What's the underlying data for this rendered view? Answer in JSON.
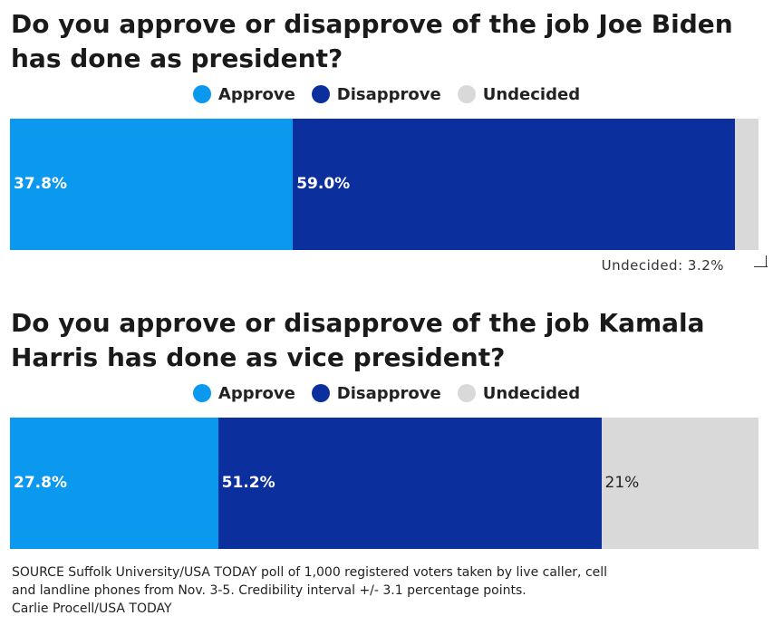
{
  "colors": {
    "approve": "#0b98ef",
    "disapprove": "#0c2f9e",
    "undecided": "#d9d9d9"
  },
  "chart_data": [
    {
      "type": "bar",
      "orientation": "horizontal-stacked",
      "title": "Do you approve or disapprove of the job Joe Biden has done as president?",
      "legend": [
        "Approve",
        "Disapprove",
        "Undecided"
      ],
      "series": [
        {
          "name": "Approve",
          "value": 37.8,
          "label": "37.8%"
        },
        {
          "name": "Disapprove",
          "value": 59.0,
          "label": "59.0%"
        },
        {
          "name": "Undecided",
          "value": 3.2,
          "label": "Undecided: 3.2%"
        }
      ]
    },
    {
      "type": "bar",
      "orientation": "horizontal-stacked",
      "title": "Do you approve or disapprove of the job Kamala Harris has done as vice president?",
      "legend": [
        "Approve",
        "Disapprove",
        "Undecided"
      ],
      "series": [
        {
          "name": "Approve",
          "value": 27.8,
          "label": "27.8%"
        },
        {
          "name": "Disapprove",
          "value": 51.2,
          "label": "51.2%"
        },
        {
          "name": "Undecided",
          "value": 21,
          "label": "21%"
        }
      ]
    }
  ],
  "source": {
    "line1": "SOURCE Suffolk University/USA TODAY poll of 1,000 registered voters taken by live caller, cell",
    "line2": "and landline phones from Nov. 3-5. Credibility interval +/- 3.1 percentage points.",
    "line3": "Carlie Procell/USA TODAY"
  }
}
